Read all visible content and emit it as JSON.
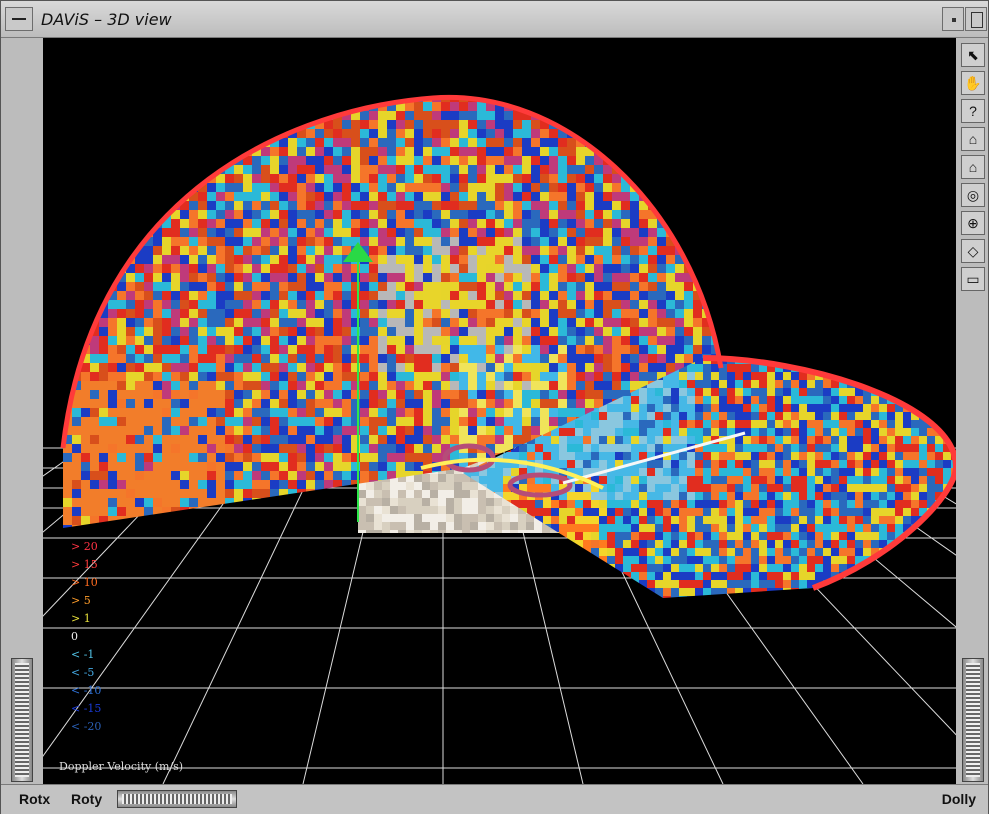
{
  "window": {
    "title": "DAViS – 3D view"
  },
  "toolbar": {
    "items": [
      {
        "name": "select-pointer-icon",
        "glyph": "⬉"
      },
      {
        "name": "pan-hand-icon",
        "glyph": "✋"
      },
      {
        "name": "help-icon",
        "glyph": "?"
      },
      {
        "name": "home-icon",
        "glyph": "⌂"
      },
      {
        "name": "set-home-icon",
        "glyph": "⌂"
      },
      {
        "name": "view-all-icon",
        "glyph": "◎"
      },
      {
        "name": "seek-icon",
        "glyph": "⊕"
      },
      {
        "name": "projection-icon",
        "glyph": "◇"
      },
      {
        "name": "camera-icon",
        "glyph": "▭"
      }
    ]
  },
  "legend": {
    "title": "Doppler Velocity (m/s)",
    "items": [
      {
        "label": "> 20",
        "color": "#ff3344"
      },
      {
        "label": "> 15",
        "color": "#ff3b3b"
      },
      {
        "label": "> 10",
        "color": "#ff6b1f"
      },
      {
        "label": "> 5",
        "color": "#ff9d2a"
      },
      {
        "label": ">  1",
        "color": "#e9e13b"
      },
      {
        "label": "0",
        "color": "#f0f0f0"
      },
      {
        "label": "< -1",
        "color": "#52c3e6"
      },
      {
        "label": "< -5",
        "color": "#43a8e2"
      },
      {
        "label": "< -10",
        "color": "#2f73d9"
      },
      {
        "label": "< -15",
        "color": "#1a3bd8"
      },
      {
        "label": "< -20",
        "color": "#2a5fb6"
      }
    ]
  },
  "bottom": {
    "rotx": "Rotx",
    "roty": "Roty",
    "dolly": "Dolly"
  }
}
